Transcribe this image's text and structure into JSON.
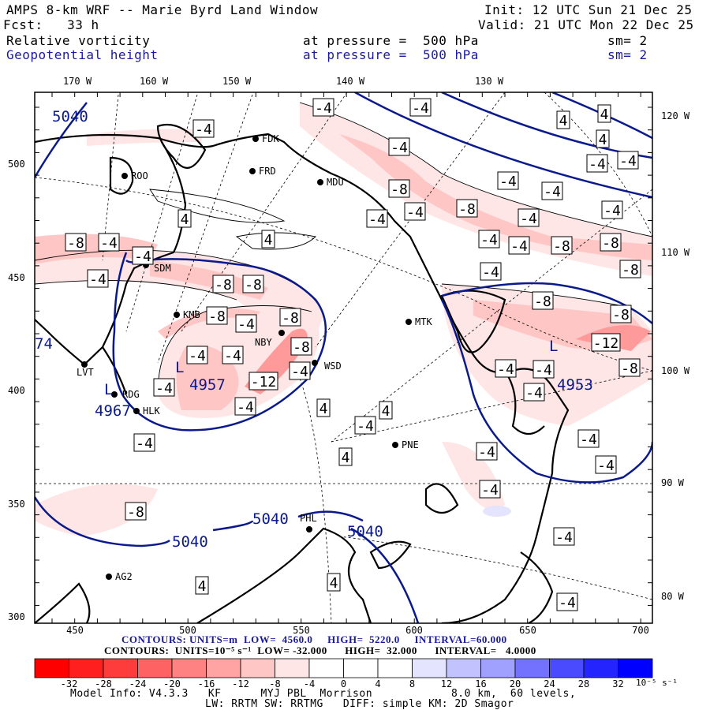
{
  "header": {
    "title": "AMPS 8-km WRF -- Marie Byrd Land Window",
    "init": "Init: 12 UTC Sun 21 Dec 25",
    "fcst": "Fcst:   33 h",
    "valid": "Valid: 21 UTC Mon 22 Dec 25",
    "field1": {
      "name": "Relative vorticity",
      "level": "at pressure =  500 hPa",
      "smooth": "sm= 2"
    },
    "field2": {
      "name": "Geopotential height",
      "level": "at pressure =  500 hPa",
      "smooth": "sm= 2"
    }
  },
  "axes": {
    "top_lon": [
      "170 W",
      "160 W",
      "150 W",
      "140 W",
      "130 W"
    ],
    "right_lon": [
      "120 W",
      "110 W",
      "100 W",
      "90 W",
      "80 W"
    ],
    "left_y": [
      "500",
      "450",
      "400",
      "350",
      "300"
    ],
    "bottom_x": [
      "450",
      "500",
      "550",
      "600",
      "650",
      "700"
    ]
  },
  "stations": [
    "FDK",
    "FRD",
    "MDU",
    "ROO",
    "SDM",
    "KMB",
    "NBY",
    "WSD",
    "MTK",
    "LVT",
    "RDG",
    "HLK",
    "PNE",
    "PHL",
    "AG2"
  ],
  "height_labels": [
    "5040",
    "5040",
    "5040",
    "5040",
    "74",
    "L",
    "4957",
    "L",
    "4967",
    "L",
    "4953"
  ],
  "vort_labels": [
    "-4",
    "-4",
    "4",
    "4",
    "-4",
    "4",
    "-4",
    "-4",
    "-4",
    "-4",
    "-4",
    "-8",
    "-8",
    "-4",
    "-4",
    "-4",
    "-4",
    "4",
    "-4",
    "-4",
    "-8",
    "-8",
    "-8",
    "-4",
    "-4",
    "4",
    "-4",
    "-8",
    "-4",
    "-8",
    "-8",
    "-8",
    "-8",
    "-8",
    "-4",
    "-8",
    "-12",
    "-4",
    "-4",
    "-8",
    "-4",
    "-4",
    "-4",
    "-8",
    "-12",
    "-4",
    "-4",
    "-4",
    "4",
    "4",
    "-4",
    "-4",
    "-4",
    "4",
    "-4",
    "-4",
    "-4",
    "-8",
    "-4",
    "4",
    "4",
    "-4"
  ],
  "footer": {
    "height_contours": "CONTOURS: UNITS=m  LOW=  4560.0     HIGH=  5220.0     INTERVAL=60.000",
    "vort_contours": "CONTOURS:  UNITS=10⁻⁵ s⁻¹  LOW= -32.000      HIGH=  32.000      INTERVAL=   4.0000",
    "colorbar_ticks": [
      "-32",
      "-28",
      "-24",
      "-20",
      "-16",
      "-12",
      "-8",
      "-4",
      "0",
      "4",
      "8",
      "12",
      "16",
      "20",
      "24",
      "28",
      "32"
    ],
    "colorbar_units": "10⁻⁵ s⁻¹",
    "model_info": "Model Info: V4.3.3   KF      MYJ PBL  Morrison            8.0 km,  60 levels,",
    "model_info2": "LW: RRTM SW: RRTMG   DIFF: simple KM: 2D Smagor"
  },
  "colors": {
    "height_contour": "#0a1a8c",
    "colorbar": [
      "#ff0000",
      "#ff1f1f",
      "#ff3c3c",
      "#ff6262",
      "#ff8282",
      "#ffa3a3",
      "#ffc6c6",
      "#ffe6e6",
      "#ffffff",
      "#ffffff",
      "#ffffff",
      "#e4e4ff",
      "#c2c2ff",
      "#a0a0ff",
      "#7272ff",
      "#4a4aff",
      "#2424ff",
      "#0000ff"
    ]
  }
}
